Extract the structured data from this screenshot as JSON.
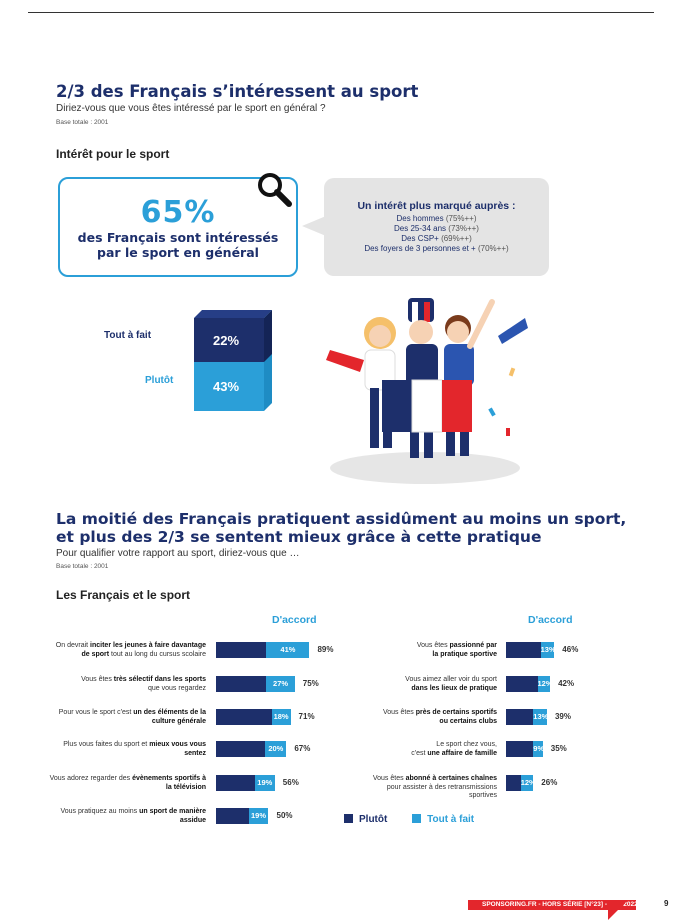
{
  "section1": {
    "title": "2/3 des Français s’intéressent au sport",
    "question": "Diriez-vous que vous êtes intéressé par le sport en général ?",
    "base": "Base totale : 2001",
    "subtitle": "Intérêt pour le sport"
  },
  "statbox": {
    "value": "65%",
    "line1": "des Français sont intéressés",
    "line2": "par le sport en général"
  },
  "bubble": {
    "title": "Un intérêt plus marqué auprès :",
    "lines": [
      {
        "text": "Des hommes",
        "value": "(75%++)"
      },
      {
        "text": "Des 25-34 ans",
        "value": "(73%++)"
      },
      {
        "text": "Des CSP+",
        "value": "(69%++)"
      },
      {
        "text": "Des foyers de 3 personnes et +",
        "value": "(70%++)"
      }
    ]
  },
  "interest_block": {
    "top_label": "Tout à fait",
    "top_value": "22%",
    "bottom_label": "Plutôt",
    "bottom_value": "43%"
  },
  "section2": {
    "title_line1": "La moitié des Français pratiquent assidûment au moins un sport,",
    "title_line2": "et plus des 2/3 se sentent mieux grâce à cette pratique",
    "question": "Pour qualifier votre rapport au sport, diriez-vous que …",
    "base": "Base totale : 2001",
    "subtitle": "Les Français et le sport"
  },
  "chart_data": {
    "type": "bar",
    "column_header": "D'accord",
    "legend": [
      {
        "name": "Plutôt",
        "color": "#1d2f6b"
      },
      {
        "name": "Tout à fait",
        "color": "#2b9fd8"
      }
    ],
    "left": [
      {
        "l1a": "On devrait ",
        "l1b": "inciter les jeunes à faire davantage",
        "l2a": "de sport",
        "l2b": " tout au long du cursus scolaire",
        "toutafait": 41,
        "total": 89,
        "toutafait_label": "41%",
        "total_label": "89%"
      },
      {
        "l1a": "Vous êtes ",
        "l1b": "très sélectif dans les sports",
        "l2a": "",
        "l2b": "que vous regardez",
        "toutafait": 27,
        "total": 75,
        "toutafait_label": "27%",
        "total_label": "75%"
      },
      {
        "l1a": "Pour vous le sport c'est ",
        "l1b": "un des éléments de la",
        "l2a": "culture générale",
        "l2b": "",
        "toutafait": 18,
        "total": 71,
        "toutafait_label": "18%",
        "total_label": "71%"
      },
      {
        "l1a": "Plus vous faites du sport et ",
        "l1b": "mieux vous vous",
        "l2a": "sentez",
        "l2b": "",
        "toutafait": 20,
        "total": 67,
        "toutafait_label": "20%",
        "total_label": "67%"
      },
      {
        "l1a": "Vous adorez regarder des ",
        "l1b": "évènements sportifs à",
        "l2a": "la télévision",
        "l2b": "",
        "toutafait": 19,
        "total": 56,
        "toutafait_label": "19%",
        "total_label": "56%"
      },
      {
        "l1a": "Vous pratiquez au moins ",
        "l1b": "un sport de manière",
        "l2a": "assidue",
        "l2b": "",
        "toutafait": 19,
        "total": 50,
        "toutafait_label": "19%",
        "total_label": "50%"
      }
    ],
    "right": [
      {
        "l1a": "Vous êtes ",
        "l1b": "passionné par",
        "l2a": "la pratique sportive",
        "l2b": "",
        "toutafait": 13,
        "total": 46,
        "toutafait_label": "13%",
        "total_label": "46%"
      },
      {
        "l1a": "Vous aimez aller voir du sport",
        "l1b": "",
        "l2a": "dans les lieux de pratique",
        "l2b": "",
        "toutafait": 12,
        "total": 42,
        "toutafait_label": "12%",
        "total_label": "42%"
      },
      {
        "l1a": "Vous êtes ",
        "l1b": "près de certains sportifs",
        "l2a": "ou certains clubs",
        "l2b": "",
        "toutafait": 13,
        "total": 39,
        "toutafait_label": "13%",
        "total_label": "39%"
      },
      {
        "l1a": "Le sport chez vous,",
        "l1b": "",
        "l2a": "",
        "l2b": "c'est ",
        "l2c": "une affaire de famille",
        "toutafait": 9,
        "total": 35,
        "toutafait_label": "9%",
        "total_label": "35%"
      },
      {
        "l1a": "Vous êtes ",
        "l1b": "abonné à certaines chaînes",
        "l2a": "",
        "l2b": "pour assister à des retransmissions sportives",
        "toutafait": 12,
        "total": 26,
        "toutafait_label": "12%",
        "total_label": "26%"
      }
    ]
  },
  "footer": {
    "text": "SPONSORING.FR - HORS SÉRIE [N°23] - ÉTÉ 2022",
    "page": "9"
  },
  "colors": {
    "navy": "#1d2f6b",
    "blue": "#2b9fd8",
    "red": "#e3262c"
  }
}
